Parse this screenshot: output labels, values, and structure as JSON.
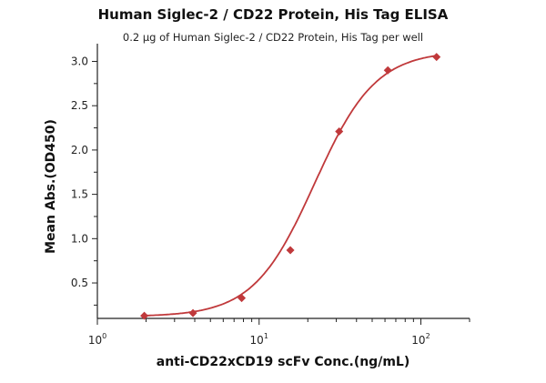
{
  "chart_data": {
    "type": "scatter",
    "title": "Human Siglec-2 / CD22 Protein, His Tag  ELISA",
    "subtitle": "0.2 μg of Human Siglec-2 / CD22 Protein, His Tag  per well",
    "xlabel": "anti-CD22xCD19 scFv Conc.(ng/mL)",
    "ylabel": "Mean Abs.(OD450)",
    "xscale": "log",
    "xlim": [
      1,
      200
    ],
    "ylim": [
      0.1,
      3.2
    ],
    "xticks": [
      {
        "value": 1,
        "base": "10",
        "exp": "0"
      },
      {
        "value": 10,
        "base": "10",
        "exp": "1"
      },
      {
        "value": 100,
        "base": "10",
        "exp": "2"
      }
    ],
    "yticks": [
      "0.5",
      "1.0",
      "1.5",
      "2.0",
      "2.5",
      "3.0"
    ],
    "grid": false,
    "series": [
      {
        "name": "data",
        "color": "#c0393b",
        "marker": "diamond",
        "x": [
          1.95,
          3.9,
          7.8,
          15.6,
          31.25,
          62.5,
          125
        ],
        "y": [
          0.13,
          0.16,
          0.33,
          0.87,
          2.21,
          2.9,
          3.05
        ]
      }
    ],
    "fit": {
      "type": "4PL",
      "bottom": 0.12,
      "top": 3.12,
      "ec50": 22,
      "hill": 2.3,
      "color": "#c0393b"
    }
  }
}
